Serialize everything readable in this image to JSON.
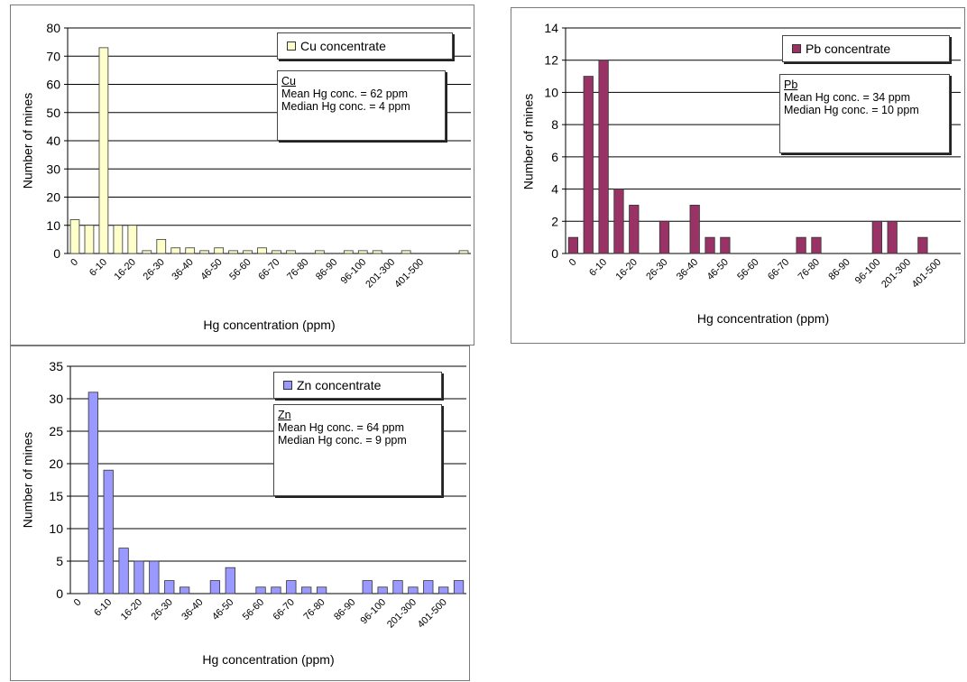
{
  "chart_data": [
    {
      "type": "bar",
      "legend": "Cu concentrate",
      "legend_position": "top-right",
      "stats": {
        "element": "Cu",
        "mean": "Mean Hg conc. = 62 ppm",
        "median": "Median Hg conc. = 4 ppm"
      },
      "xlabel": "Hg concentration (ppm)",
      "ylabel": "Number of mines",
      "ylim": [
        0,
        80
      ],
      "yticks": [
        0,
        10,
        20,
        30,
        40,
        50,
        60,
        70,
        80
      ],
      "tick_labels": [
        "0",
        "6-10",
        "16-20",
        "26-30",
        "36-40",
        "46-50",
        "56-60",
        "66-70",
        "76-80",
        "86-90",
        "96-100",
        "201-300",
        "401-500"
      ],
      "values": [
        12,
        10,
        73,
        10,
        10,
        1,
        5,
        2,
        2,
        1,
        2,
        1,
        1,
        2,
        1,
        1,
        0,
        1,
        0,
        1,
        1,
        1,
        0,
        1,
        0,
        0,
        0,
        1
      ],
      "color": "#ffffcc",
      "grid": true
    },
    {
      "type": "bar",
      "legend": "Pb concentrate",
      "legend_position": "top-right",
      "stats": {
        "element": "Pb",
        "mean": "Mean Hg conc. = 34 ppm",
        "median": "Median Hg conc. = 10 ppm"
      },
      "xlabel": "Hg concentration (ppm)",
      "ylabel": "Number of mines",
      "ylim": [
        0,
        14
      ],
      "yticks": [
        0,
        2,
        4,
        6,
        8,
        10,
        12,
        14
      ],
      "tick_labels": [
        "0",
        "6-10",
        "16-20",
        "26-30",
        "36-40",
        "46-50",
        "56-60",
        "66-70",
        "76-80",
        "86-90",
        "96-100",
        "201-300",
        "401-500"
      ],
      "values": [
        1,
        11,
        12,
        4,
        3,
        0,
        2,
        0,
        3,
        1,
        1,
        0,
        0,
        0,
        0,
        1,
        1,
        0,
        0,
        0,
        2,
        2,
        0,
        1,
        0,
        0
      ],
      "color": "#993366",
      "grid": true
    },
    {
      "type": "bar",
      "legend": "Zn concentrate",
      "legend_position": "top-right",
      "stats": {
        "element": "Zn",
        "mean": "Mean Hg conc. = 64 ppm",
        "median": "Median Hg conc. = 9 ppm"
      },
      "xlabel": "Hg concentration (ppm)",
      "ylabel": "Number of mines",
      "ylim": [
        0,
        35
      ],
      "yticks": [
        0,
        5,
        10,
        15,
        20,
        25,
        30,
        35
      ],
      "tick_labels": [
        "0",
        "6-10",
        "16-20",
        "26-30",
        "36-40",
        "46-50",
        "56-60",
        "66-70",
        "76-80",
        "86-90",
        "96-100",
        "201-300",
        "401-500"
      ],
      "values": [
        0,
        31,
        19,
        7,
        5,
        5,
        2,
        1,
        0,
        2,
        4,
        0,
        1,
        1,
        2,
        1,
        1,
        0,
        0,
        2,
        1,
        2,
        1,
        2,
        1,
        2
      ],
      "color": "#9999ff",
      "grid": true
    }
  ]
}
